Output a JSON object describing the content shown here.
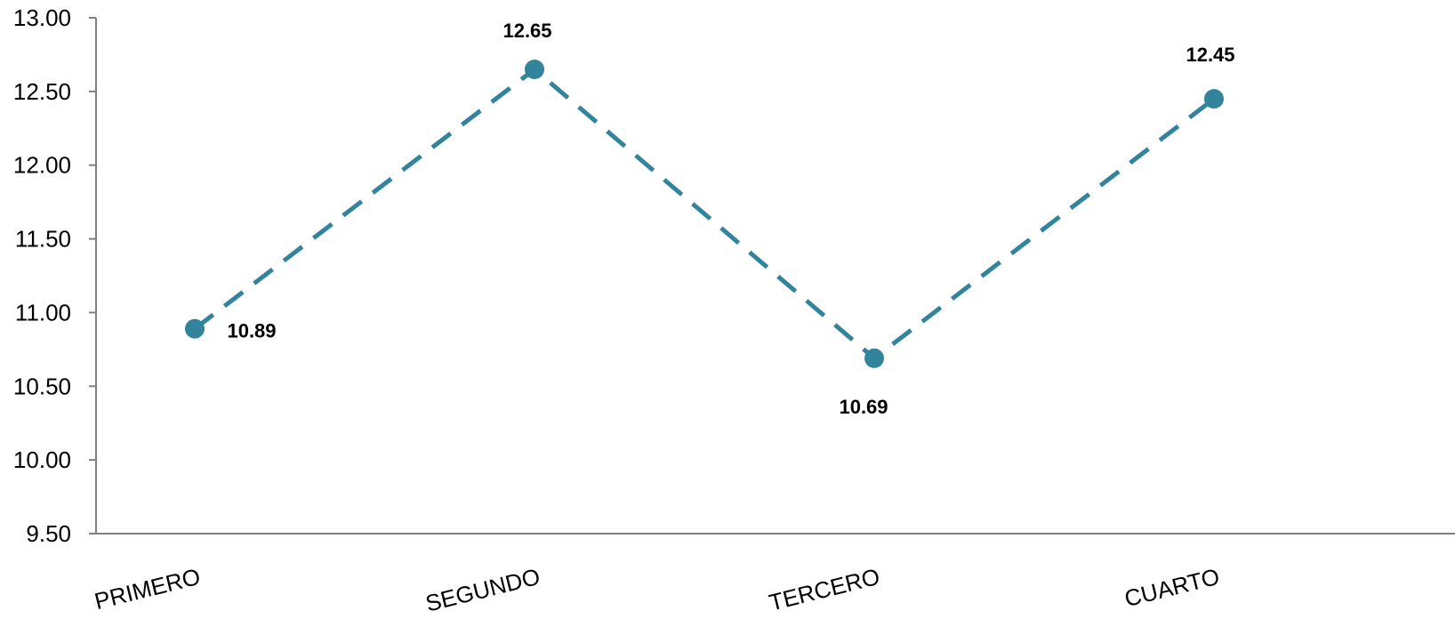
{
  "chart_data": {
    "type": "line",
    "title": "",
    "xlabel": "",
    "ylabel": "",
    "categories": [
      "PRIMERO",
      "SEGUNDO",
      "TERCERO",
      "CUARTO"
    ],
    "series": [
      {
        "values": [
          10.89,
          12.65,
          10.69,
          12.45
        ],
        "color": "#31849b",
        "line_style": "dashed",
        "marker": "circle"
      }
    ],
    "data_labels": [
      "10.89",
      "12.65",
      "10.69",
      "12.45"
    ],
    "y_ticks": [
      "9.50",
      "10.00",
      "10.50",
      "11.00",
      "11.50",
      "12.00",
      "12.50",
      "13.00"
    ],
    "ylim": [
      9.5,
      13.0
    ],
    "grid": false,
    "legend": "none"
  }
}
